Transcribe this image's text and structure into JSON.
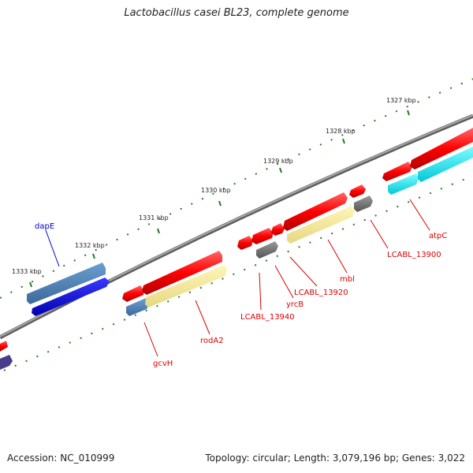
{
  "title": "Lactobacillus casei BL23, complete genome",
  "accession_label": "Accession: NC_010999",
  "topology_label": "Topology: circular; Length: 3,079,196 bp; Genes: 3,022",
  "tick_labels": [
    "1327 kbp",
    "1328 kbp",
    "1329 kbp",
    "1330 kbp",
    "1331 kbp",
    "1332 kbp",
    "1333 kbp"
  ],
  "gene_labels": {
    "dapE": "dapE",
    "gcvH": "gcvH",
    "rodA2": "rodA2",
    "LCABL_13940": "LCABL_13940",
    "yrcB": "yrcB",
    "LCABL_13920": "LCABL_13920",
    "mbl": "mbl",
    "LCABL_13900": "LCABL_13900",
    "atpC": "atpC"
  },
  "colors": {
    "backbone": "#808080",
    "tick": "#2a7a2a",
    "forward_gene": "#ff0000",
    "dapE_bar": "#5a8fc0",
    "dapE_reverse": "#0000ee",
    "yellow_gene": "#f0e68c",
    "gray_gene": "#707070",
    "cyan_gene": "#00e5ee",
    "steel_gene": "#4682b4",
    "purple_gene": "#483d8b",
    "label_red": "#dd0000",
    "label_blue": "#0000cc"
  }
}
